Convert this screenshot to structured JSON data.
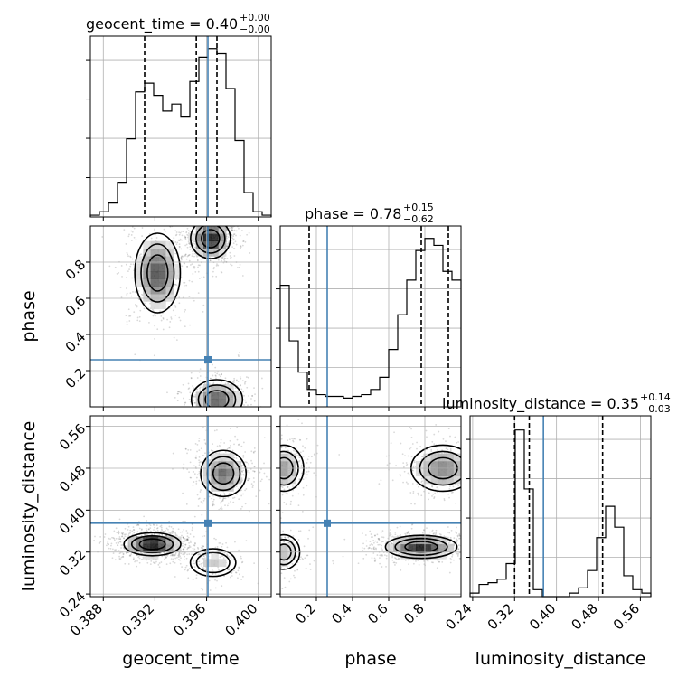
{
  "chart_data": {
    "type": "corner",
    "parameters": [
      "geocent_time",
      "phase",
      "luminosity_distance"
    ],
    "colors": {
      "truth": "#4682b4",
      "hist": "#000000",
      "quantile": "#000000",
      "grid": "#b0b0b0",
      "density": "#000000"
    },
    "grid": true,
    "titles": [
      {
        "param": "geocent_time",
        "text": "geocent_time = 0.40",
        "plus": "+0.00",
        "minus": "−0.00"
      },
      {
        "param": "phase",
        "text": "phase = 0.78",
        "plus": "+0.15",
        "minus": "−0.62"
      },
      {
        "param": "luminosity_distance",
        "text": "luminosity_distance = 0.35",
        "plus": "+0.14",
        "minus": "−0.03"
      }
    ],
    "axes": {
      "geocent_time": {
        "range": [
          0.387,
          0.401
        ],
        "ticks": [
          0.388,
          0.392,
          0.396,
          0.4
        ],
        "tick_labels": [
          "0.388",
          "0.392",
          "0.396",
          "0.400"
        ],
        "truth": 0.3961,
        "quantiles": [
          0.3912,
          0.3952,
          0.3968
        ]
      },
      "phase": {
        "range": [
          0.0,
          1.0
        ],
        "ticks": [
          0.2,
          0.4,
          0.6,
          0.8
        ],
        "tick_labels": [
          "0.2",
          "0.4",
          "0.6",
          "0.8"
        ],
        "truth": 0.26,
        "quantiles": [
          0.16,
          0.78,
          0.93
        ]
      },
      "luminosity_distance": {
        "range": [
          0.235,
          0.58
        ],
        "ticks": [
          0.24,
          0.32,
          0.4,
          0.48,
          0.56
        ],
        "tick_labels": [
          "0.24",
          "0.32",
          "0.40",
          "0.48",
          "0.56"
        ],
        "truth": 0.375,
        "quantiles": [
          0.32,
          0.348,
          0.488
        ]
      }
    },
    "histograms": [
      {
        "param": "geocent_time",
        "range": [
          0.387,
          0.401
        ],
        "values": [
          0.01,
          0.03,
          0.08,
          0.2,
          0.45,
          0.72,
          0.77,
          0.7,
          0.61,
          0.65,
          0.58,
          0.78,
          0.92,
          0.97,
          0.94,
          0.74,
          0.44,
          0.14,
          0.03,
          0.01
        ]
      },
      {
        "param": "phase",
        "range": [
          0.0,
          1.0
        ],
        "values": [
          0.7,
          0.38,
          0.2,
          0.1,
          0.07,
          0.06,
          0.06,
          0.05,
          0.06,
          0.07,
          0.1,
          0.17,
          0.33,
          0.53,
          0.73,
          0.9,
          0.97,
          0.93,
          0.78,
          0.73
        ]
      },
      {
        "param": "luminosity_distance",
        "range": [
          0.235,
          0.58
        ],
        "values": [
          0.02,
          0.07,
          0.08,
          0.1,
          0.19,
          0.96,
          0.62,
          0.04,
          0.0,
          0.0,
          0.0,
          0.02,
          0.05,
          0.15,
          0.34,
          0.52,
          0.4,
          0.12,
          0.04,
          0.02
        ]
      }
    ],
    "density_2d": [
      {
        "x": "geocent_time",
        "y": "phase",
        "modes": [
          {
            "x": 0.3963,
            "y": 0.93,
            "sx": 0.0007,
            "sy": 0.05,
            "w": 1.0
          },
          {
            "x": 0.3922,
            "y": 0.74,
            "sx": 0.0008,
            "sy": 0.1,
            "w": 0.75
          },
          {
            "x": 0.3968,
            "y": 0.04,
            "sx": 0.0009,
            "sy": 0.05,
            "w": 0.7
          }
        ]
      },
      {
        "x": "geocent_time",
        "y": "luminosity_distance",
        "modes": [
          {
            "x": 0.3918,
            "y": 0.335,
            "sx": 0.001,
            "sy": 0.01,
            "w": 1.0
          },
          {
            "x": 0.3973,
            "y": 0.47,
            "sx": 0.0008,
            "sy": 0.02,
            "w": 0.55
          },
          {
            "x": 0.3965,
            "y": 0.3,
            "sx": 0.0008,
            "sy": 0.012,
            "w": 0.2
          }
        ]
      },
      {
        "x": "phase",
        "y": "luminosity_distance",
        "modes": [
          {
            "x": 0.78,
            "y": 0.33,
            "sx": 0.09,
            "sy": 0.01,
            "w": 1.0
          },
          {
            "x": 0.9,
            "y": 0.48,
            "sx": 0.08,
            "sy": 0.02,
            "w": 0.55
          },
          {
            "x": 0.02,
            "y": 0.48,
            "sx": 0.05,
            "sy": 0.02,
            "w": 0.45
          },
          {
            "x": 0.02,
            "y": 0.32,
            "sx": 0.04,
            "sy": 0.015,
            "w": 0.3
          }
        ]
      }
    ],
    "labels": {
      "geocent_time": "geocent_time",
      "phase": "phase",
      "luminosity_distance": "luminosity_distance"
    }
  }
}
